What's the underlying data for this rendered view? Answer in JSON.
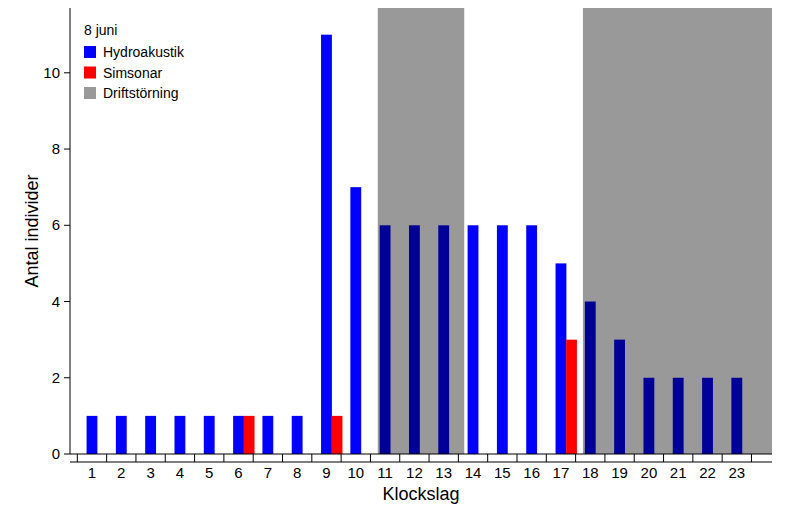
{
  "chart_data": {
    "type": "bar",
    "title": "8 juni",
    "x_label": "Klockslag",
    "y_label": "Antal individer",
    "x": [
      1,
      2,
      3,
      4,
      5,
      6,
      7,
      8,
      9,
      10,
      11,
      12,
      13,
      14,
      15,
      16,
      17,
      18,
      19,
      20,
      21,
      22,
      23
    ],
    "xlim": [
      0.25,
      24.2
    ],
    "xticks": [
      1,
      2,
      3,
      4,
      5,
      6,
      7,
      8,
      9,
      10,
      11,
      12,
      13,
      14,
      15,
      16,
      17,
      18,
      19,
      20,
      21,
      22,
      23
    ],
    "ylim": [
      0,
      11.7
    ],
    "yticks": [
      0,
      2,
      4,
      6,
      8,
      10
    ],
    "legend": "top-left",
    "grid": false,
    "series": [
      {
        "name": "Hydroakustik",
        "color": "#0000ff",
        "values": [
          1,
          1,
          1,
          1,
          1,
          1,
          1,
          1,
          11,
          7,
          6,
          6,
          6,
          6,
          6,
          6,
          5,
          4,
          3,
          2,
          2,
          2,
          2
        ]
      },
      {
        "name": "Simsonar",
        "color": "#ff0000",
        "values": [
          0,
          0,
          0,
          0,
          0,
          1,
          0,
          0,
          1,
          0,
          0,
          0,
          0,
          0,
          0,
          0,
          3,
          0,
          0,
          0,
          0,
          0,
          0
        ]
      }
    ],
    "regions": [
      {
        "name": "Driftstörning",
        "color": "#999999",
        "ranges": [
          [
            10.75,
            13.7
          ],
          [
            17.75,
            24.2
          ]
        ]
      }
    ]
  }
}
